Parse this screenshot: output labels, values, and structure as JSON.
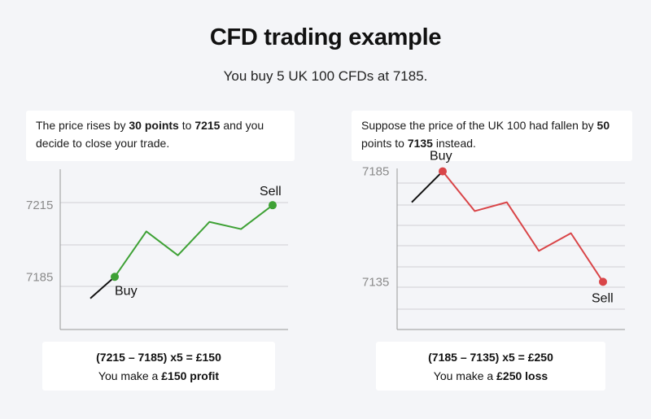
{
  "header": {
    "title": "CFD trading example",
    "subtitle": "You buy 5 UK 100 CFDs at 7185."
  },
  "left_panel": {
    "desc_pre": "The price rises by ",
    "desc_bold1": "30 points",
    "desc_mid": " to ",
    "desc_bold2": "7215",
    "desc_post": " and you decide to close your trade.",
    "result_formula": "(7215 – 7185) x5 = £150",
    "result_pre": "You make a ",
    "result_bold": "£150 profit"
  },
  "right_panel": {
    "desc_pre": "Suppose the price of the UK 100 had fallen by ",
    "desc_bold1": "50",
    "desc_mid": " points to ",
    "desc_bold2": "7135",
    "desc_post": " instead.",
    "result_formula": "(7185 – 7135) x5 = £250",
    "result_pre": "You make a ",
    "result_bold": "£250 loss"
  },
  "chart_data": [
    {
      "type": "line",
      "color": "#3ea135",
      "entry_line_color": "#111111",
      "y_ticks": [
        "7215",
        "7185"
      ],
      "lead_in": [
        7176,
        7185
      ],
      "series": [
        {
          "values": [
            7185,
            7204,
            7194,
            7208,
            7205,
            7215
          ]
        }
      ],
      "buy_label": "Buy",
      "sell_label": "Sell",
      "ylim": [
        7165,
        7228
      ],
      "grid": true
    },
    {
      "type": "line",
      "color": "#d94548",
      "entry_line_color": "#111111",
      "y_ticks": [
        "7185",
        "7135"
      ],
      "lead_in": [
        7171,
        7185
      ],
      "series": [
        {
          "values": [
            7185,
            7167,
            7171,
            7149,
            7157,
            7135
          ]
        }
      ],
      "buy_label": "Buy",
      "sell_label": "Sell",
      "ylim": [
        7116,
        7190
      ],
      "grid": true
    }
  ]
}
